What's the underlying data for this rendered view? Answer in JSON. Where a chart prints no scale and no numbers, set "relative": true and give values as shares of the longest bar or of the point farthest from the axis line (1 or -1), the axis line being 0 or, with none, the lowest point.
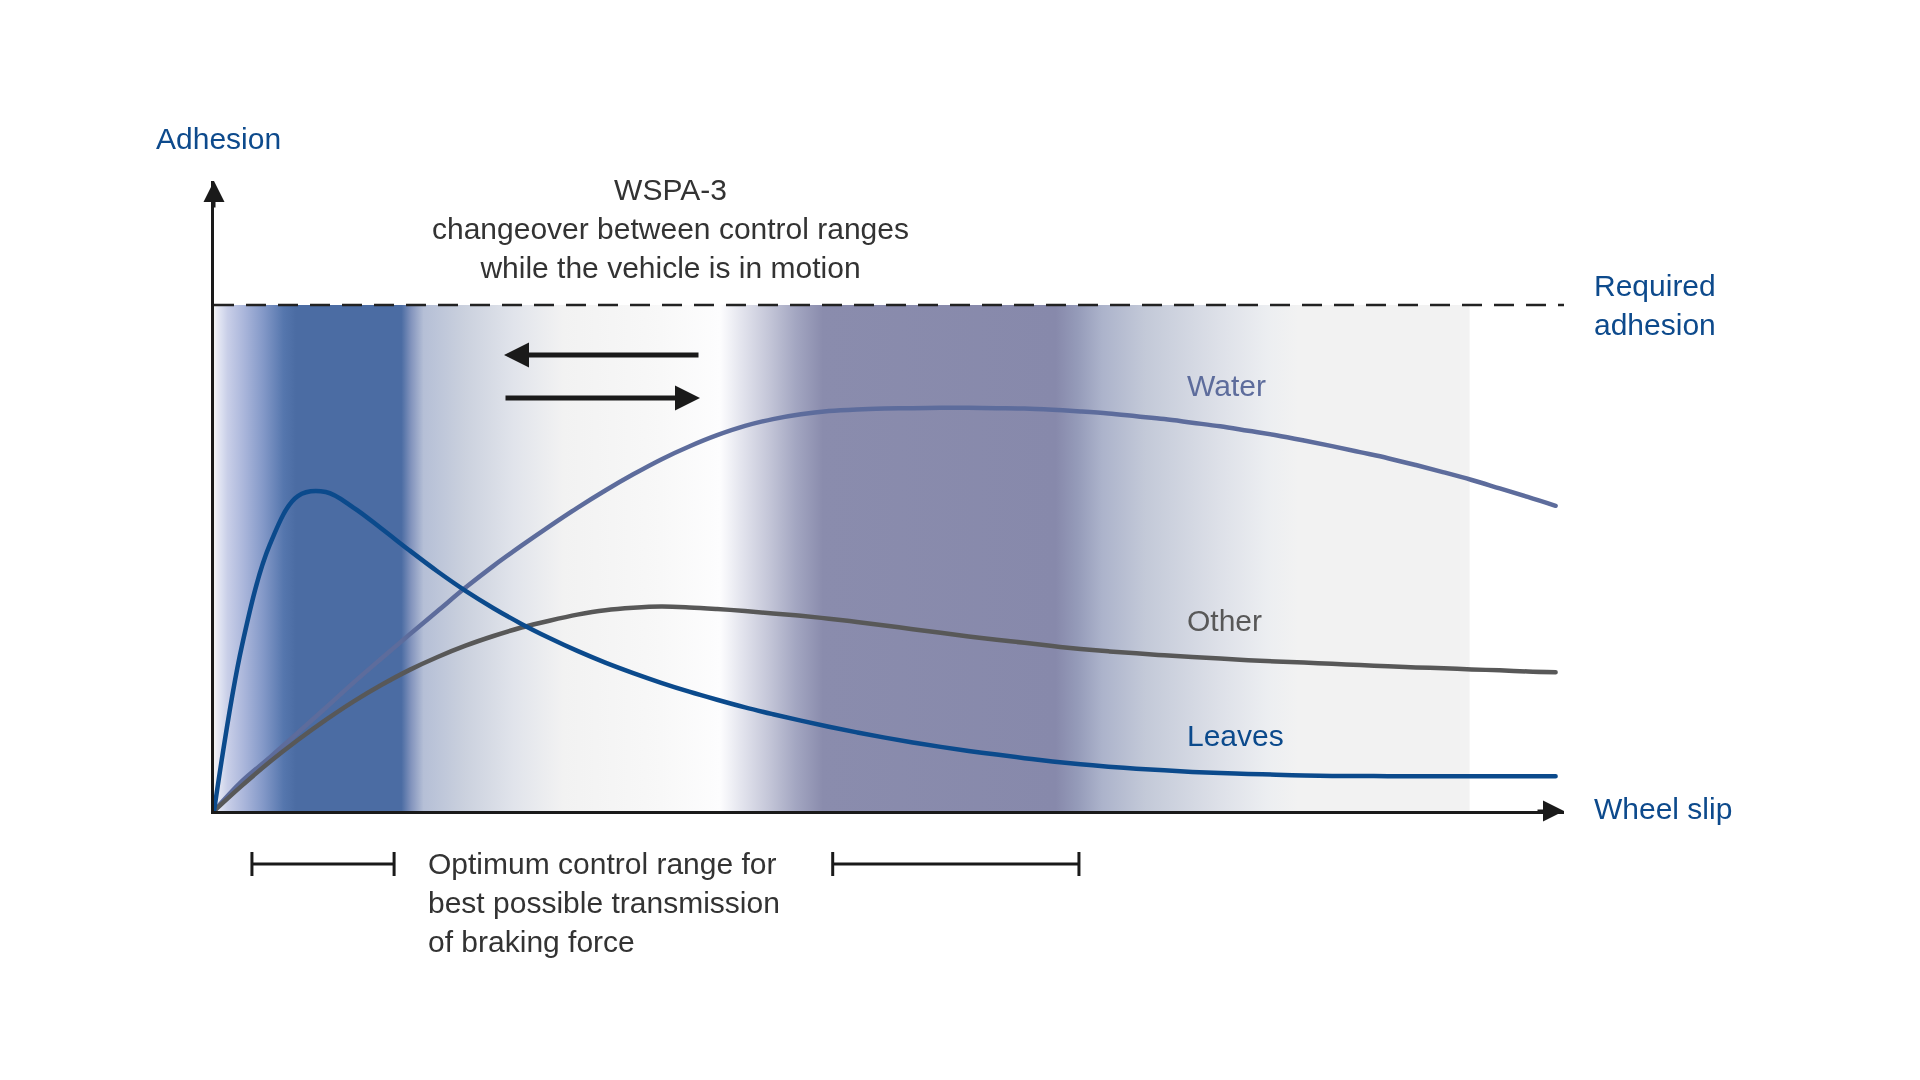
{
  "chart_data": {
    "type": "line",
    "relative": true,
    "xlabel": "Wheel slip",
    "categories": [
      null,
      null,
      null,
      null,
      null,
      null,
      null,
      null,
      null,
      null,
      null,
      null,
      null,
      null,
      null,
      null,
      null,
      null,
      null,
      null,
      null,
      null,
      null,
      null,
      null,
      null,
      null,
      null,
      null,
      null,
      null,
      null,
      null,
      null,
      null,
      null,
      null,
      null,
      null,
      null,
      null,
      null,
      null,
      null,
      null,
      null,
      null,
      null,
      null
    ],
    "series": [
      {
        "name": "Water",
        "color": "#5d6c9c",
        "values": [
          0,
          0.074,
          0.133,
          0.194,
          0.256,
          0.319,
          0.379,
          0.438,
          0.496,
          0.554,
          0.608,
          0.658,
          0.706,
          0.752,
          0.795,
          0.835,
          0.872,
          0.904,
          0.932,
          0.955,
          0.972,
          0.984,
          0.992,
          0.996,
          0.998,
          0.999,
          1.0,
          1.0,
          0.999,
          0.998,
          0.995,
          0.991,
          0.986,
          0.979,
          0.972,
          0.963,
          0.954,
          0.943,
          0.932,
          0.919,
          0.905,
          0.89,
          0.875,
          0.858,
          0.84,
          0.821,
          0.8,
          0.779,
          0.757
        ]
      },
      {
        "name": "Other",
        "color": "#585858",
        "values": [
          0,
          0.063,
          0.122,
          0.176,
          0.226,
          0.272,
          0.313,
          0.35,
          0.382,
          0.41,
          0.434,
          0.455,
          0.472,
          0.487,
          0.498,
          0.504,
          0.507,
          0.505,
          0.501,
          0.496,
          0.49,
          0.484,
          0.477,
          0.469,
          0.46,
          0.451,
          0.442,
          0.433,
          0.425,
          0.417,
          0.409,
          0.402,
          0.396,
          0.391,
          0.386,
          0.382,
          0.378,
          0.374,
          0.371,
          0.368,
          0.365,
          0.362,
          0.359,
          0.356,
          0.354,
          0.351,
          0.349,
          0.346,
          0.344
        ]
      },
      {
        "name": "Leaves",
        "color": "#0b4a8c",
        "values": [
          0,
          0.41,
          0.661,
          0.781,
          0.791,
          0.752,
          0.7,
          0.646,
          0.594,
          0.546,
          0.503,
          0.464,
          0.429,
          0.397,
          0.368,
          0.342,
          0.318,
          0.296,
          0.276,
          0.257,
          0.24,
          0.224,
          0.209,
          0.195,
          0.182,
          0.17,
          0.159,
          0.149,
          0.14,
          0.131,
          0.123,
          0.116,
          0.11,
          0.105,
          0.101,
          0.097,
          0.094,
          0.092,
          0.09,
          0.088,
          0.087,
          0.087,
          0.086,
          0.086,
          0.086,
          0.086,
          0.086,
          0.086,
          0.086
        ]
      }
    ],
    "ref_lines": [
      {
        "axis": "y",
        "value": 1.255,
        "label": "Required\nadhesion",
        "color": "#222222",
        "line_style": "dashed"
      }
    ],
    "annotations": [
      "Adhesion",
      "WSPA-3\nchangeover between control ranges\nwhile the vehicle is in motion",
      "Optimum control range for\nbest possible transmission\nof braking force"
    ]
  }
}
